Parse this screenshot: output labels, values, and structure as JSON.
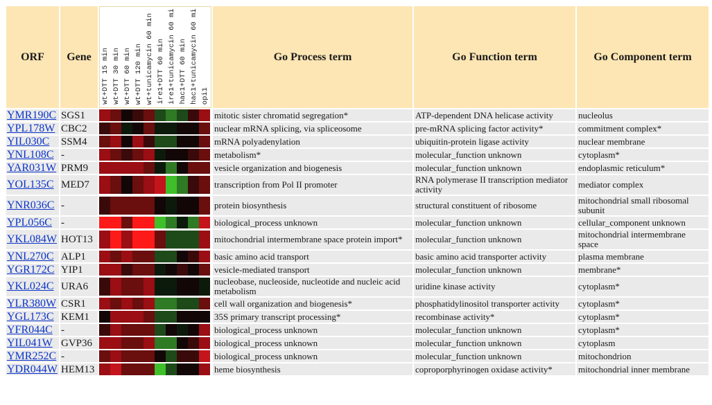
{
  "headers": {
    "orf": "ORF",
    "gene": "Gene",
    "process": "Go Process term",
    "function": "Go Function term",
    "component": "Go Component term",
    "conditions": [
      "wt+DTT 15 min",
      "wt+DTT 30 min",
      "wt+DTT 60 min",
      "wt+DTT 120 min",
      "wt+tunicamycin 60 min",
      "ire1+DTT 60 min",
      "ire1+tunicamycin 60 min",
      "hac1+DTT 60 min",
      "hac1+tunicamycin 60 min",
      "opi1"
    ]
  },
  "heatmap_colors": {
    "a": "#3a0a0a",
    "b": "#6a0e0e",
    "c": "#9a0e14",
    "d": "#c4141c",
    "e": "#ff1a1a",
    "k": "#120606",
    "n": "#0c1a0c",
    "g": "#1e4a1a",
    "G": "#2f7a24",
    "H": "#3fbf2a"
  },
  "rows": [
    {
      "orf": "YMR190C",
      "gene": "SGS1",
      "process": "mitotic sister chromatid segregation*",
      "function": "ATP-dependent DNA helicase activity",
      "component": "nucleolus",
      "heat": "cbkabgGgac"
    },
    {
      "orf": "YPL178W",
      "gene": "CBC2",
      "process": "nuclear mRNA splicing, via spliceosome",
      "function": "pre-mRNA splicing factor activity*",
      "component": "commitment complex*",
      "heat": "abnkbnnkkb"
    },
    {
      "orf": "YIL030C",
      "gene": "SSM4",
      "process": "mRNA polyadenylation",
      "function": "ubiquitin-protein ligase activity",
      "component": "nuclear membrane",
      "heat": "bckcaggkkb"
    },
    {
      "orf": "YNL108C",
      "gene": "-",
      "process": "metabolism*",
      "function": "molecular_function unknown",
      "component": "cytoplasm*",
      "heat": "cbabcnkkab"
    },
    {
      "orf": "YAR031W",
      "gene": "PRM9",
      "process": "vesicle organization and biogenesis",
      "function": "molecular_function unknown",
      "component": "endoplasmic reticulum*",
      "heat": "ccccbnGkbb"
    },
    {
      "orf": "YOL135C",
      "gene": "MED7",
      "process": "transcription from Pol II promoter",
      "function": "RNA polymerase II transcription mediator activity",
      "component": "mediator complex",
      "heat": "cbkbcdHGab",
      "tall": true
    },
    {
      "orf": "YNR036C",
      "gene": "-",
      "process": "protein biosynthesis",
      "function": "structural constituent of ribosome",
      "component": "mitochondrial small ribosomal subunit",
      "heat": "abbbbknkkb",
      "tall": true
    },
    {
      "orf": "YPL056C",
      "gene": "-",
      "process": "biological_process unknown",
      "function": "molecular_function unknown",
      "component": "cellular_component unknown",
      "heat": "eebeeHGnGd"
    },
    {
      "orf": "YKL084W",
      "gene": "HOT13",
      "process": "mitochondrial intermembrane space protein import*",
      "function": "molecular_function unknown",
      "component": "mitochondrial intermembrane space",
      "heat": "ceceebgggc",
      "tall": true
    },
    {
      "orf": "YNL270C",
      "gene": "ALP1",
      "process": "basic amino acid transport",
      "function": "basic amino acid transporter activity",
      "component": "plasma membrane",
      "heat": "cbcbbggkac"
    },
    {
      "orf": "YGR172C",
      "gene": "YIP1",
      "process": "vesicle-mediated transport",
      "function": "molecular_function unknown",
      "component": "membrane*",
      "heat": "ccabbnkakb"
    },
    {
      "orf": "YKL024C",
      "gene": "URA6",
      "process": "nucleobase, nucleoside, nucleotide and nucleic acid metabolism",
      "function": "uridine kinase activity",
      "component": "cytoplasm*",
      "heat": "acbbcnnkkn",
      "tall": true
    },
    {
      "orf": "YLR380W",
      "gene": "CSR1",
      "process": "cell wall organization and biogenesis*",
      "function": "phosphatidylinositol transporter activity",
      "component": "cytoplasm*",
      "heat": "cbcbcGGggb"
    },
    {
      "orf": "YGL173C",
      "gene": "KEM1",
      "process": "35S primary transcript processing*",
      "function": "recombinase activity*",
      "component": "cytoplasm*",
      "heat": "kcccbggkkk"
    },
    {
      "orf": "YFR044C",
      "gene": "-",
      "process": "biological_process unknown",
      "function": "molecular_function unknown",
      "component": "cytoplasm*",
      "heat": "acbbbgknkc"
    },
    {
      "orf": "YIL041W",
      "gene": "GVP36",
      "process": "biological_process unknown",
      "function": "molecular_function unknown",
      "component": "cytoplasm",
      "heat": "ccbbcGGkac"
    },
    {
      "orf": "YMR252C",
      "gene": "-",
      "process": "biological_process unknown",
      "function": "molecular_function unknown",
      "component": "mitochondrion",
      "heat": "bcbbbkgaad"
    },
    {
      "orf": "YDR044W",
      "gene": "HEM13",
      "process": "heme biosynthesis",
      "function": "coproporphyrinogen oxidase activity*",
      "component": "mitochondrial inner membrane",
      "heat": "cdbbbHgkkc"
    }
  ]
}
